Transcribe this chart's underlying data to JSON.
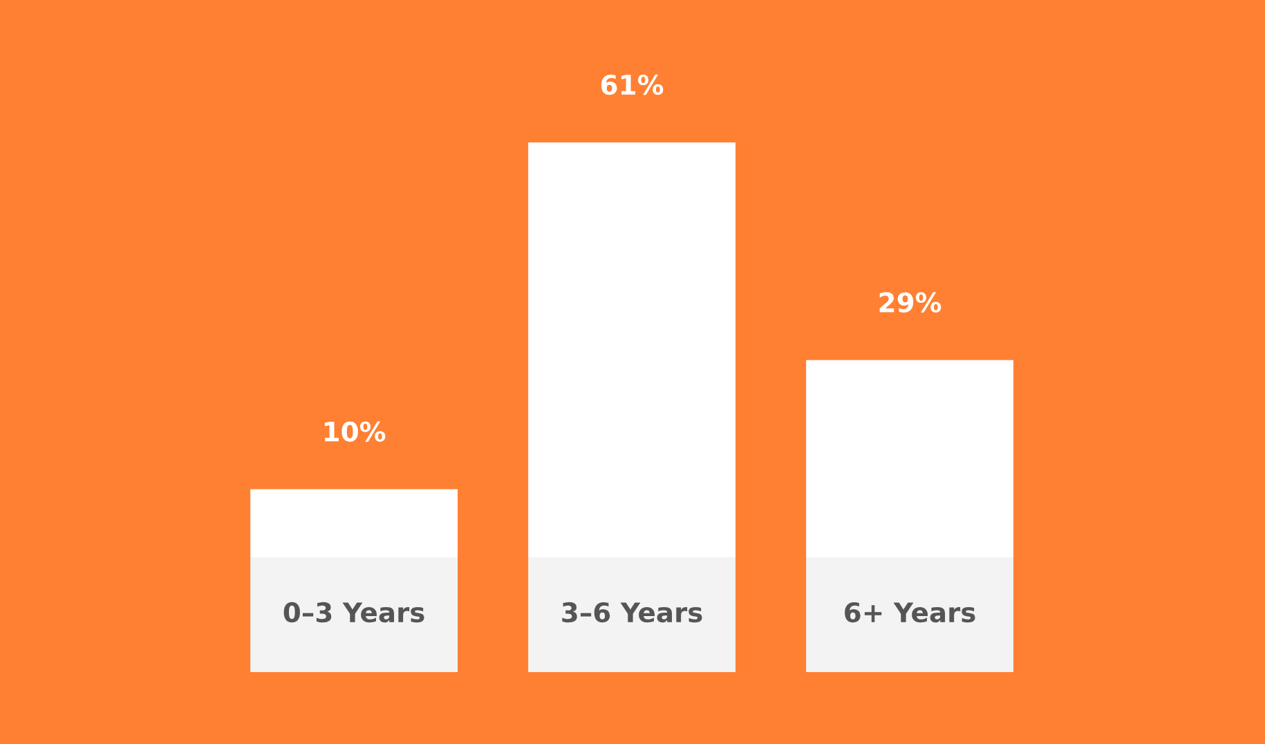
{
  "chart_data": {
    "type": "bar",
    "categories": [
      "0–3 Years",
      "3–6 Years",
      "6+ Years"
    ],
    "values": [
      10,
      61,
      29
    ],
    "value_labels": [
      "10%",
      "61%",
      "29%"
    ],
    "color": "#ffffff"
  }
}
